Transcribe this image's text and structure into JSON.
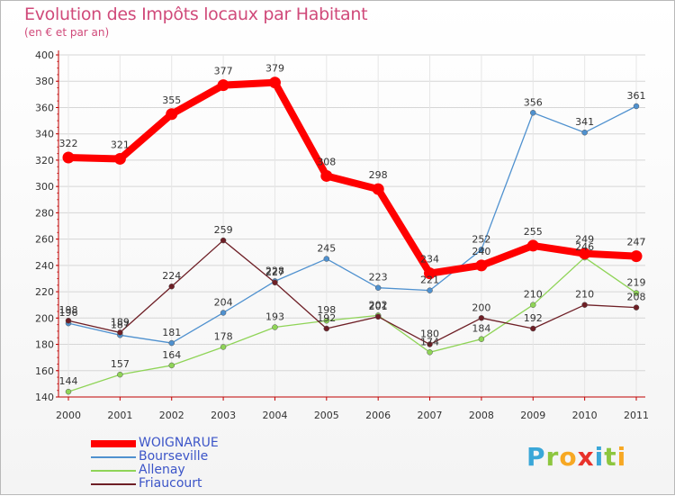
{
  "header": {
    "title": "Evolution des Impôts locaux par Habitant",
    "subtitle": "(en € et par an)"
  },
  "chart_data": {
    "type": "line",
    "title": "Evolution des Impôts locaux par Habitant",
    "subtitle": "(en € et par an)",
    "xlabel": "",
    "ylabel": "",
    "x": [
      "2000",
      "2001",
      "2002",
      "2003",
      "2004",
      "2005",
      "2006",
      "2007",
      "2008",
      "2009",
      "2010",
      "2011"
    ],
    "ylim": [
      140,
      400
    ],
    "yticks": [
      140,
      160,
      180,
      200,
      220,
      240,
      260,
      280,
      300,
      320,
      340,
      360,
      380,
      400
    ],
    "grid": true,
    "legend_position": "bottom-left",
    "series": [
      {
        "name": "WOIGNARUE",
        "color": "#ff0000",
        "values": [
          322,
          321,
          355,
          377,
          379,
          308,
          298,
          234,
          240,
          255,
          249,
          247
        ]
      },
      {
        "name": "Bourseville",
        "color": "#4f91cf",
        "values": [
          196,
          187,
          181,
          204,
          228,
          245,
          223,
          221,
          252,
          356,
          341,
          361
        ]
      },
      {
        "name": "Allenay",
        "color": "#8fd457",
        "values": [
          144,
          157,
          164,
          178,
          193,
          198,
          202,
          174,
          184,
          210,
          246,
          219
        ]
      },
      {
        "name": "Friaucourt",
        "color": "#6e1f26",
        "values": [
          198,
          189,
          224,
          259,
          227,
          192,
          201,
          180,
          200,
          192,
          210,
          208
        ]
      }
    ]
  },
  "logo": {
    "letters": [
      "P",
      "r",
      "o",
      "x",
      "i",
      "t",
      "i"
    ],
    "colors": [
      "#3aa7d8",
      "#8dc63f",
      "#f7a823",
      "#e8322b",
      "#3aa7d8",
      "#8dc63f",
      "#f7a823"
    ]
  }
}
